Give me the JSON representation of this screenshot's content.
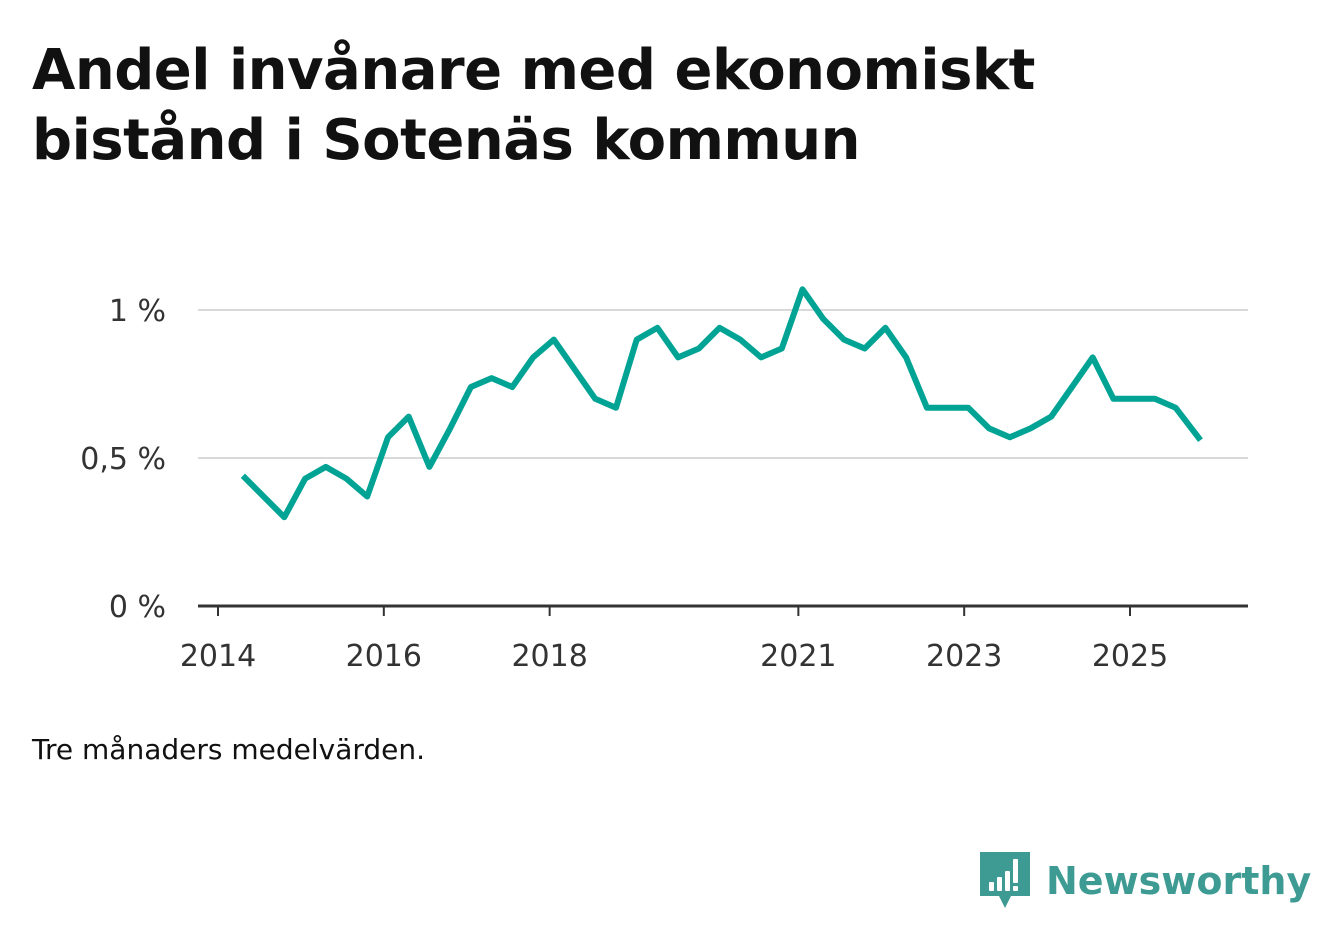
{
  "title": "Andel invånare med ekonomiskt bistånd i Sotenäs kommun",
  "caption": "Tre månaders medelvärden.",
  "brand": {
    "name": "Newsworthy",
    "icon": "newsworthy-logo-icon",
    "color": "#3e9b93"
  },
  "chart_data": {
    "type": "line",
    "title": "Andel invånare med ekonomiskt bistånd i Sotenäs kommun",
    "xlabel": "",
    "ylabel": "",
    "ylim": [
      0,
      1.1
    ],
    "xlim": [
      2013.8,
      2026.3
    ],
    "grid": true,
    "line_color": "#00a394",
    "y_ticks": [
      {
        "value": 0,
        "label": "0 %"
      },
      {
        "value": 0.5,
        "label": "0,5 %"
      },
      {
        "value": 1,
        "label": "1 %"
      }
    ],
    "x_ticks": [
      {
        "value": 2014,
        "label": "2014"
      },
      {
        "value": 2016,
        "label": "2016"
      },
      {
        "value": 2018,
        "label": "2018"
      },
      {
        "value": 2021,
        "label": "2021"
      },
      {
        "value": 2023,
        "label": "2023"
      },
      {
        "value": 2025,
        "label": "2025"
      }
    ],
    "series": [
      {
        "name": "Andel invånare med ekonomiskt bistånd",
        "x": [
          2014.3,
          2014.55,
          2014.8,
          2015.05,
          2015.3,
          2015.55,
          2015.8,
          2016.05,
          2016.3,
          2016.55,
          2016.8,
          2017.05,
          2017.3,
          2017.55,
          2017.8,
          2018.05,
          2018.3,
          2018.55,
          2018.8,
          2019.05,
          2019.3,
          2019.55,
          2019.8,
          2020.05,
          2020.3,
          2020.55,
          2020.8,
          2021.05,
          2021.3,
          2021.55,
          2021.8,
          2022.05,
          2022.3,
          2022.55,
          2022.8,
          2023.05,
          2023.3,
          2023.55,
          2023.8,
          2024.05,
          2024.3,
          2024.55,
          2024.8,
          2025.05,
          2025.3,
          2025.55,
          2025.85
        ],
        "values": [
          0.44,
          0.37,
          0.3,
          0.43,
          0.47,
          0.43,
          0.37,
          0.57,
          0.64,
          0.47,
          0.6,
          0.74,
          0.77,
          0.74,
          0.84,
          0.9,
          0.8,
          0.7,
          0.67,
          0.9,
          0.94,
          0.84,
          0.87,
          0.94,
          0.9,
          0.84,
          0.87,
          1.07,
          0.97,
          0.9,
          0.87,
          0.94,
          0.84,
          0.67,
          0.67,
          0.67,
          0.6,
          0.57,
          0.6,
          0.64,
          0.74,
          0.84,
          0.7,
          0.7,
          0.7,
          0.67,
          0.56
        ]
      }
    ]
  }
}
